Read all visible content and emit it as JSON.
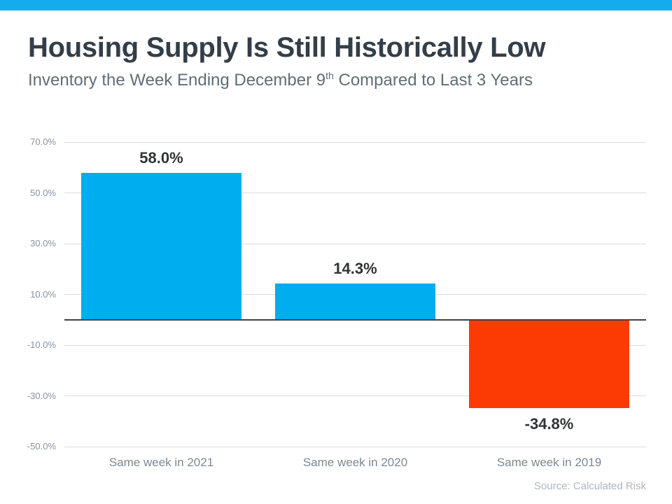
{
  "page": {
    "title": "Housing Supply Is Still Historically Low",
    "subtitle_prefix": "Inventory the Week Ending December 9",
    "subtitle_sup": "th",
    "subtitle_suffix": " Compared to Last 3 Years",
    "source": "Source: Calculated Risk"
  },
  "theme": {
    "topbar_color": "#14ACEC",
    "title_color": "#333E48",
    "subtitle_color": "#5E6E78",
    "value_label_color": "#303338",
    "ytick_label_color": "#8793A3",
    "xtick_label_color": "#7C8894",
    "source_color": "#AEB6C0",
    "gridline_color": "#DBDDDE",
    "zero_line_color": "#3E4145"
  },
  "chart_data": {
    "type": "bar",
    "title": "Housing Supply Is Still Historically Low",
    "subtitle": "Inventory the Week Ending December 9th Compared to Last 3 Years",
    "categories": [
      "Same week in 2021",
      "Same week in 2020",
      "Same week in 2019"
    ],
    "values": [
      58.0,
      14.3,
      -34.8
    ],
    "value_labels": [
      "58.0%",
      "14.3%",
      "-34.8%"
    ],
    "bar_colors": [
      "#00ADEE",
      "#00ADEE",
      "#FB3B03"
    ],
    "xlabel": "",
    "ylabel": "",
    "ylim": [
      -50,
      70
    ],
    "yticks": [
      70,
      50,
      30,
      10,
      -10,
      -30,
      -50
    ],
    "ytick_labels": [
      "70.0%",
      "50.0%",
      "30.0%",
      "10.0%",
      "-10.0%",
      "-30.0%",
      "-50.0%"
    ],
    "grid": true,
    "legend": false,
    "source": "Source: Calculated Risk"
  }
}
